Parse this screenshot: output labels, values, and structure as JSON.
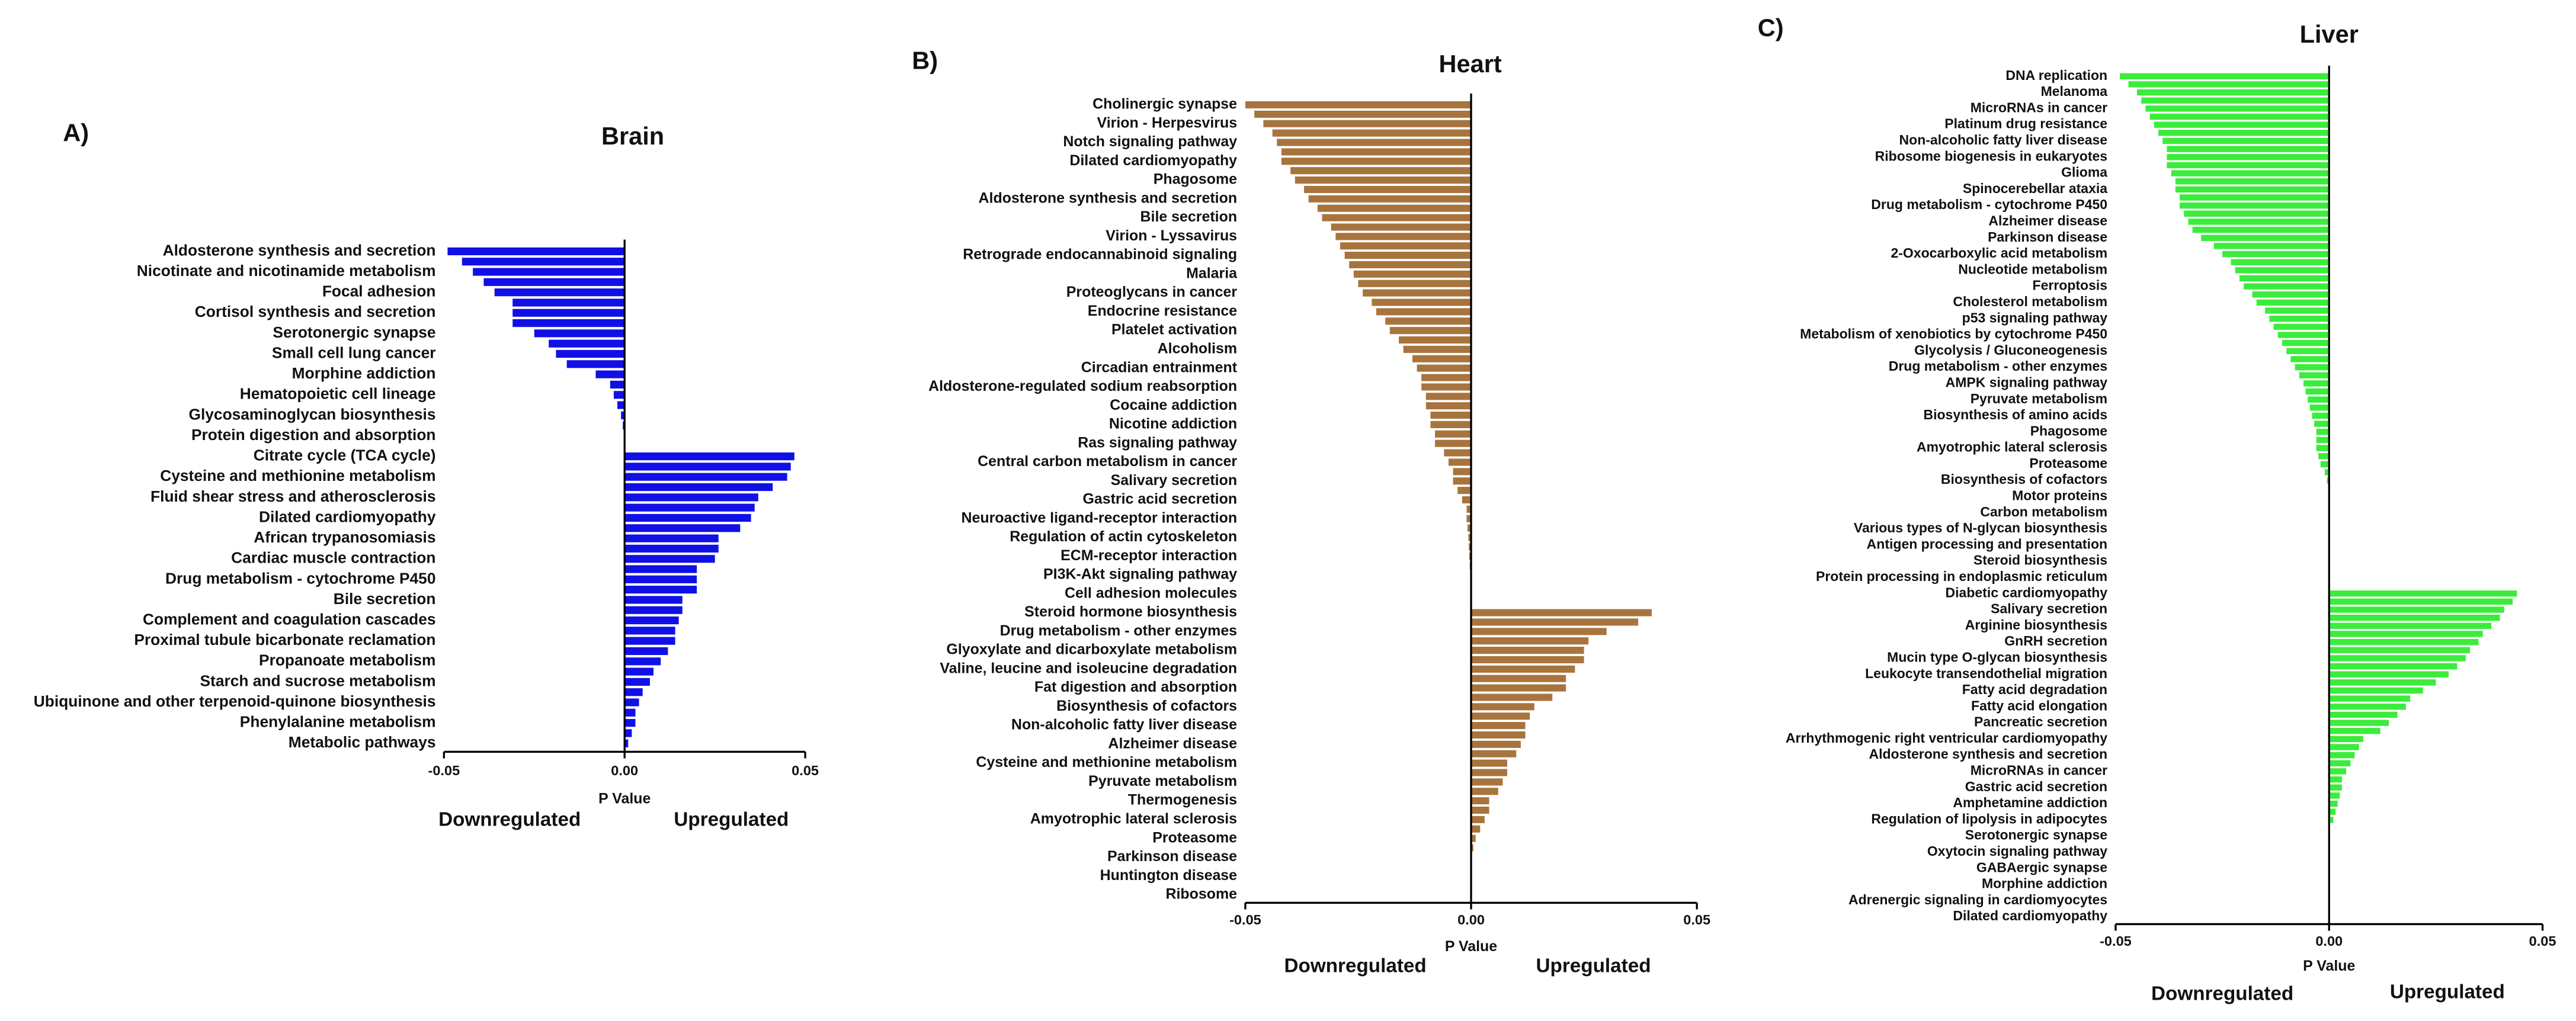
{
  "chart_data": [
    {
      "type": "barh",
      "panel_label": "A)",
      "title": "Brain",
      "xlabel": "P Value",
      "annotations": [
        "Downregulated",
        "Upregulated"
      ],
      "color": "#1010e6",
      "xlim": [
        -0.05,
        0.05
      ],
      "xticks": [
        -0.05,
        {
          "value": 0,
          "label": "0.00"
        },
        0.05
      ],
      "categories": [
        "Aldosterone synthesis and secretion",
        null,
        "Nicotinate and nicotinamide metabolism",
        null,
        "Focal adhesion",
        null,
        "Cortisol synthesis and secretion",
        null,
        "Serotonergic synapse",
        null,
        "Small cell lung cancer",
        null,
        "Morphine addiction",
        null,
        "Hematopoietic cell lineage",
        null,
        "Glycosaminoglycan biosynthesis",
        null,
        "Protein digestion and absorption",
        null,
        "Citrate cycle (TCA cycle)",
        null,
        "Cysteine and methionine metabolism",
        null,
        "Fluid shear stress and atherosclerosis",
        null,
        "Dilated cardiomyopathy",
        null,
        "African trypanosomiasis",
        null,
        "Cardiac muscle contraction",
        null,
        "Drug metabolism - cytochrome P450",
        null,
        "Bile secretion",
        null,
        "Complement and coagulation cascades",
        null,
        "Proximal tubule bicarbonate reclamation",
        null,
        "Propanoate metabolism",
        null,
        "Starch and sucrose metabolism",
        null,
        "Ubiquinone and other terpenoid-quinone biosynthesis",
        null,
        "Phenylalanine metabolism",
        null,
        "Metabolic pathways"
      ],
      "values": [
        -0.049,
        -0.045,
        -0.042,
        -0.039,
        -0.036,
        -0.031,
        -0.031,
        -0.031,
        -0.025,
        -0.021,
        -0.019,
        -0.016,
        -0.008,
        -0.004,
        -0.003,
        -0.002,
        -0.001,
        -0.0005,
        0,
        0,
        0.047,
        0.046,
        0.045,
        0.041,
        0.037,
        0.036,
        0.035,
        0.032,
        0.026,
        0.026,
        0.025,
        0.02,
        0.02,
        0.02,
        0.016,
        0.016,
        0.015,
        0.014,
        0.014,
        0.012,
        0.01,
        0.008,
        0.007,
        0.005,
        0.004,
        0.003,
        0.003,
        0.002,
        0.001
      ]
    },
    {
      "type": "barh",
      "panel_label": "B)",
      "title": "Heart",
      "xlabel": "P Value",
      "annotations": [
        "Downregulated",
        "Upregulated"
      ],
      "color": "#a8743e",
      "xlim": [
        -0.05,
        0.05
      ],
      "xticks": [
        -0.05,
        {
          "value": 0,
          "label": "0.00"
        },
        0.05
      ],
      "categories": [
        "Cholinergic synapse",
        null,
        "Virion - Herpesvirus",
        null,
        "Notch signaling pathway",
        null,
        "Dilated cardiomyopathy",
        null,
        "Phagosome",
        null,
        "Aldosterone synthesis and secretion",
        null,
        "Bile secretion",
        null,
        "Virion - Lyssavirus",
        null,
        "Retrograde endocannabinoid signaling",
        null,
        "Malaria",
        null,
        "Proteoglycans in cancer",
        null,
        "Endocrine resistance",
        null,
        "Platelet activation",
        null,
        "Alcoholism",
        null,
        "Circadian entrainment",
        null,
        "Aldosterone-regulated sodium reabsorption",
        null,
        "Cocaine addiction",
        null,
        "Nicotine addiction",
        null,
        "Ras signaling pathway",
        null,
        "Central carbon metabolism in cancer",
        null,
        "Salivary secretion",
        null,
        "Gastric acid secretion",
        null,
        "Neuroactive ligand-receptor interaction",
        null,
        "Regulation of actin cytoskeleton",
        null,
        "ECM-receptor interaction",
        null,
        "PI3K-Akt signaling pathway",
        null,
        "Cell adhesion molecules",
        null,
        "Steroid hormone biosynthesis",
        null,
        "Drug metabolism - other enzymes",
        null,
        "Glyoxylate and dicarboxylate metabolism",
        null,
        "Valine, leucine and isoleucine degradation",
        null,
        "Fat digestion and absorption",
        null,
        "Biosynthesis of cofactors",
        null,
        "Non-alcoholic fatty liver disease",
        null,
        "Alzheimer disease",
        null,
        "Cysteine and methionine metabolism",
        null,
        "Pyruvate metabolism",
        null,
        "Thermogenesis",
        null,
        "Amyotrophic lateral sclerosis",
        null,
        "Proteasome",
        null,
        "Parkinson disease",
        null,
        "Huntington disease",
        null,
        "Ribosome"
      ],
      "values": [
        -0.05,
        -0.048,
        -0.046,
        -0.044,
        -0.043,
        -0.042,
        -0.042,
        -0.04,
        -0.039,
        -0.037,
        -0.036,
        -0.034,
        -0.033,
        -0.031,
        -0.03,
        -0.029,
        -0.028,
        -0.027,
        -0.026,
        -0.025,
        -0.024,
        -0.022,
        -0.021,
        -0.019,
        -0.018,
        -0.016,
        -0.015,
        -0.013,
        -0.012,
        -0.011,
        -0.011,
        -0.01,
        -0.01,
        -0.009,
        -0.009,
        -0.008,
        -0.008,
        -0.006,
        -0.005,
        -0.004,
        -0.004,
        -0.003,
        -0.002,
        -0.001,
        -0.001,
        -0.0008,
        -0.0006,
        -0.0005,
        -0.0004,
        -0.0003,
        -0.0002,
        -0.0001,
        -0.0001,
        0,
        0.04,
        0.037,
        0.03,
        0.026,
        0.025,
        0.025,
        0.023,
        0.021,
        0.021,
        0.018,
        0.014,
        0.013,
        0.012,
        0.012,
        0.011,
        0.01,
        0.008,
        0.008,
        0.007,
        0.006,
        0.004,
        0.004,
        0.003,
        0.002,
        0.001,
        0.0005,
        0,
        0,
        0,
        0,
        0
      ]
    },
    {
      "type": "barh",
      "panel_label": "C)",
      "title": "Liver",
      "xlabel": "P Value",
      "annotations": [
        "Downregulated",
        "Upregulated"
      ],
      "color": "#3cec3c",
      "xlim": [
        -0.05,
        0.05
      ],
      "xticks": [
        -0.05,
        {
          "value": 0,
          "label": "0.00"
        },
        0.05
      ],
      "categories": [
        "DNA replication",
        null,
        "Melanoma",
        null,
        "MicroRNAs in cancer",
        null,
        "Platinum drug resistance",
        null,
        "Non-alcoholic fatty liver disease",
        null,
        "Ribosome biogenesis in eukaryotes",
        null,
        "Glioma",
        null,
        "Spinocerebellar ataxia",
        null,
        "Drug metabolism - cytochrome P450",
        null,
        "Alzheimer disease",
        null,
        "Parkinson disease",
        null,
        "2-Oxocarboxylic acid metabolism",
        null,
        "Nucleotide metabolism",
        null,
        "Ferroptosis",
        null,
        "Cholesterol metabolism",
        null,
        "p53 signaling pathway",
        null,
        "Metabolism of xenobiotics by cytochrome P450",
        null,
        "Glycolysis / Gluconeogenesis",
        null,
        "Drug metabolism - other enzymes",
        null,
        "AMPK signaling pathway",
        null,
        "Pyruvate metabolism",
        null,
        "Biosynthesis of amino acids",
        null,
        "Phagosome",
        null,
        "Amyotrophic lateral sclerosis",
        null,
        "Proteasome",
        null,
        "Biosynthesis of cofactors",
        null,
        "Motor proteins",
        null,
        "Carbon metabolism",
        null,
        "Various types of N-glycan biosynthesis",
        null,
        "Antigen processing and presentation",
        null,
        "Steroid biosynthesis",
        null,
        "Protein processing in endoplasmic reticulum",
        null,
        "Diabetic cardiomyopathy",
        null,
        "Salivary secretion",
        null,
        "Arginine biosynthesis",
        null,
        "GnRH secretion",
        null,
        "Mucin type O-glycan biosynthesis",
        null,
        "Leukocyte transendothelial migration",
        null,
        "Fatty acid degradation",
        null,
        "Fatty acid elongation",
        null,
        "Pancreatic secretion",
        null,
        "Arrhythmogenic right ventricular cardiomyopathy",
        null,
        "Aldosterone synthesis and secretion",
        null,
        "MicroRNAs in cancer",
        null,
        "Gastric acid secretion",
        null,
        "Amphetamine addiction",
        null,
        "Regulation of lipolysis in adipocytes",
        null,
        "Serotonergic synapse",
        null,
        "Oxytocin signaling pathway",
        null,
        "GABAergic synapse",
        null,
        "Morphine addiction",
        null,
        "Adrenergic signaling in cardiomyocytes",
        null,
        "Dilated cardiomyopathy"
      ],
      "values": [
        -0.049,
        -0.047,
        -0.045,
        -0.044,
        -0.043,
        -0.042,
        -0.041,
        -0.04,
        -0.039,
        -0.038,
        -0.038,
        -0.038,
        -0.037,
        -0.036,
        -0.036,
        -0.035,
        -0.035,
        -0.034,
        -0.033,
        -0.032,
        -0.03,
        -0.027,
        -0.025,
        -0.023,
        -0.022,
        -0.021,
        -0.02,
        -0.018,
        -0.017,
        -0.015,
        -0.014,
        -0.013,
        -0.012,
        -0.011,
        -0.01,
        -0.009,
        -0.008,
        -0.007,
        -0.006,
        -0.0055,
        -0.005,
        -0.0045,
        -0.004,
        -0.0035,
        -0.003,
        -0.003,
        -0.003,
        -0.0025,
        -0.002,
        -0.001,
        -0.0005,
        0,
        0,
        0,
        0,
        0,
        0,
        0,
        0,
        0,
        0,
        0,
        0,
        0,
        0.044,
        0.043,
        0.041,
        0.04,
        0.038,
        0.036,
        0.035,
        0.033,
        0.032,
        0.03,
        0.028,
        0.025,
        0.022,
        0.019,
        0.018,
        0.016,
        0.014,
        0.012,
        0.008,
        0.007,
        0.006,
        0.005,
        0.004,
        0.003,
        0.003,
        0.0025,
        0.002,
        0.0015,
        0.001,
        0,
        0,
        0,
        0,
        0,
        0,
        0,
        0,
        0,
        0,
        0,
        0
      ]
    }
  ]
}
